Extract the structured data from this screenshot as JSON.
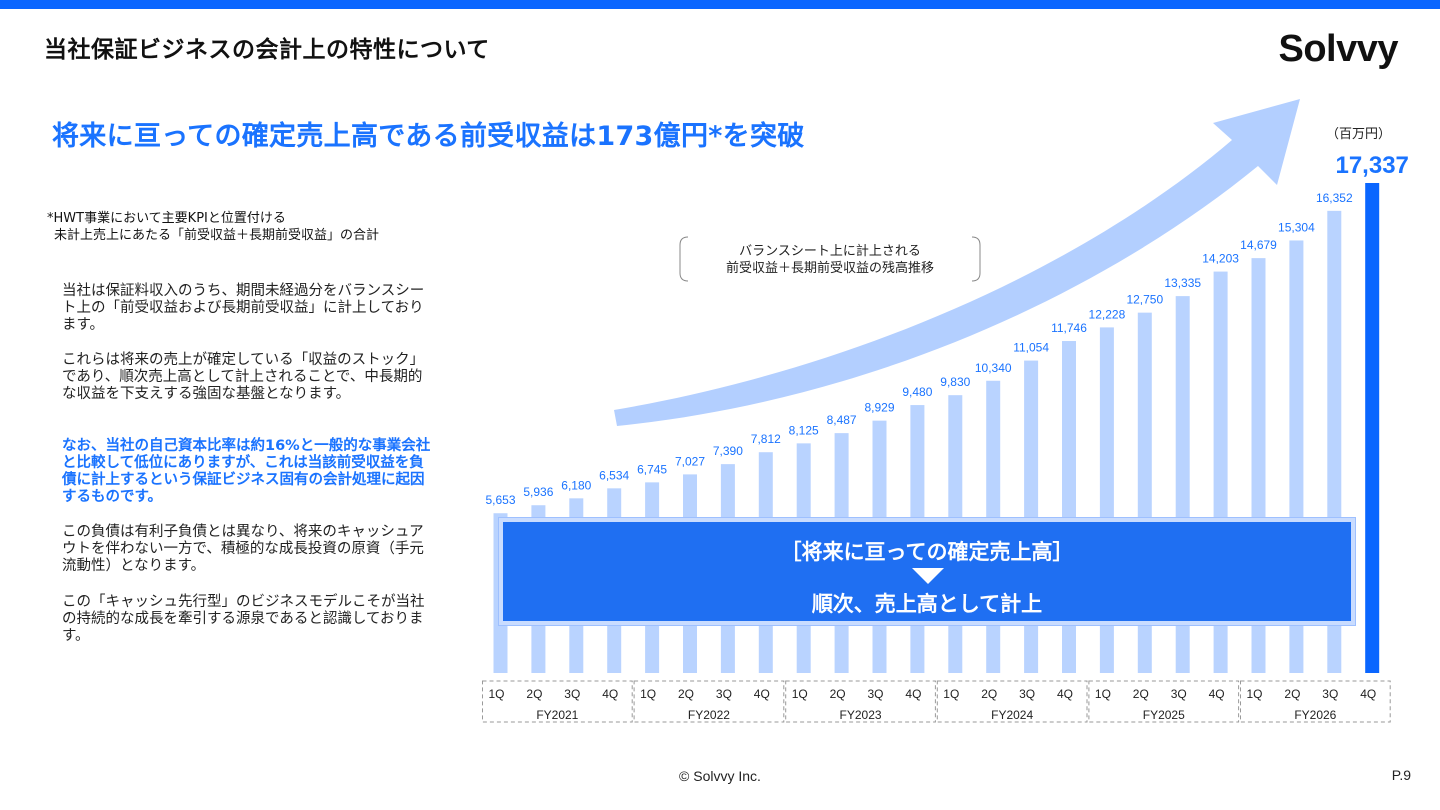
{
  "header": {
    "title": "当社保証ビジネスの会計上の特性について",
    "logo": "Solvvy"
  },
  "headline": "将来に亘っての確定売上高である前受収益は173億円*を突破",
  "footnote": {
    "line1": "*HWT事業において主要KPIと位置付ける",
    "line2": "未計上売上にあたる「前受収益＋長期前受収益」の合計"
  },
  "body": {
    "p1": [
      "当社は保証料収入のうち、期間未経過分をバランスシー",
      "ト上の「前受収益および長期前受収益」に計上しており",
      "ます。"
    ],
    "p2": [
      "これらは将来の売上が確定している「収益のストック」",
      "であり、順次売上高として計上されることで、中長期的",
      "な収益を下支えする強固な基盤となります。"
    ],
    "p3": [
      "なお、当社の自己資本比率は約16%と一般的な事業会社",
      "と比較して低位にありますが、これは当該前受収益を負",
      "債に計上するという保証ビジネス固有の会計処理に起因",
      "するものです。"
    ],
    "p4": [
      "この負債は有利子負債とは異なり、将来のキャッシュア",
      "ウトを伴わない一方で、積極的な成長投資の原資（手元",
      "流動性）となります。"
    ],
    "p5": [
      "この「キャッシュ先行型」のビジネスモデルこそが当社",
      "の持続的な成長を牽引する源泉であると認識しておりま",
      "す。"
    ]
  },
  "unit_label": "（百万円）",
  "bracket_note": {
    "line1": "バランスシート上に計上される",
    "line2": "前受収益＋長期前受収益の残高推移"
  },
  "overlay": {
    "title": "［将来に亘っての確定売上高］",
    "subtitle": "順次、売上高として計上"
  },
  "chart_data": {
    "type": "bar",
    "unit": "（百万円）",
    "quarters": [
      "1Q",
      "2Q",
      "3Q",
      "4Q"
    ],
    "years": [
      "FY2021",
      "FY2022",
      "FY2023",
      "FY2024",
      "FY2025",
      "FY2026"
    ],
    "values": [
      5653,
      5936,
      6180,
      6534,
      6745,
      7027,
      7390,
      7812,
      8125,
      8487,
      8929,
      9480,
      9830,
      10340,
      11054,
      11746,
      12228,
      12750,
      13335,
      14203,
      14679,
      15304,
      16352,
      17337
    ],
    "value_labels": [
      "5,653",
      "5,936",
      "6,180",
      "6,534",
      "6,745",
      "7,027",
      "7,390",
      "7,812",
      "8,125",
      "8,487",
      "8,929",
      "9,480",
      "9,830",
      "10,340",
      "11,054",
      "11,746",
      "12,228",
      "12,750",
      "13,335",
      "14,203",
      "14,679",
      "15,304",
      "16,352",
      "17,337"
    ],
    "highlight_index": 23,
    "colors": {
      "bar": "#b9d3ff",
      "highlight": "#0a66ff",
      "label": "#1a73ff",
      "arrow": "#b3cfff"
    }
  },
  "footer": {
    "copyright": "© Solvvy Inc.",
    "page": "P.9"
  }
}
